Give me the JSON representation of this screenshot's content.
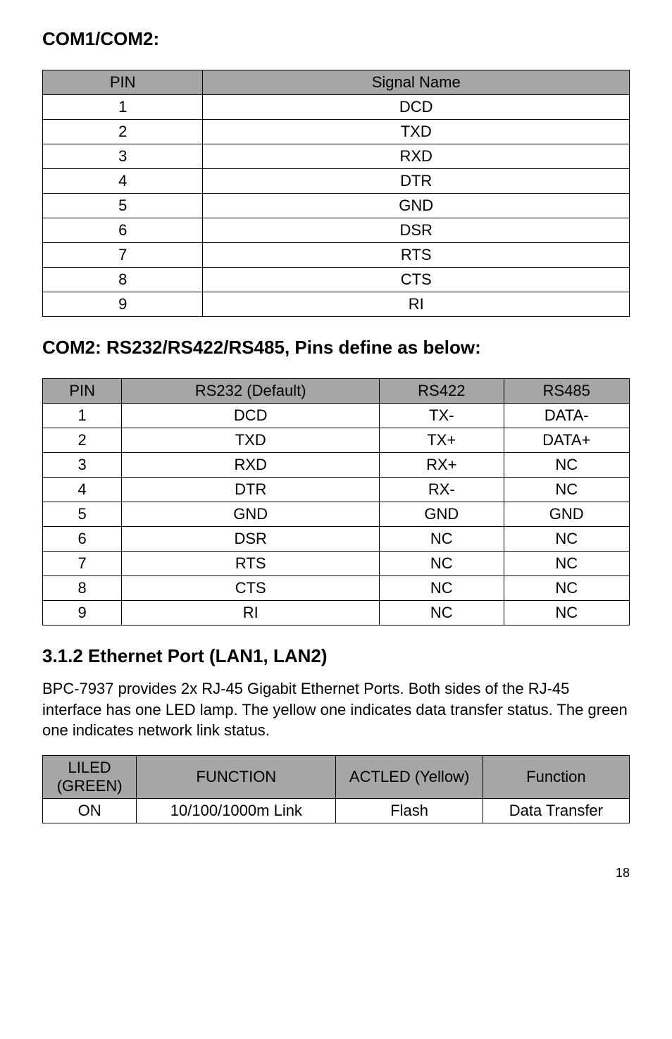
{
  "heading1": "COM1/COM2:",
  "table1": {
    "headers": [
      "PIN",
      "Signal Name"
    ],
    "rows": [
      [
        "1",
        "DCD"
      ],
      [
        "2",
        "TXD"
      ],
      [
        "3",
        "RXD"
      ],
      [
        "4",
        "DTR"
      ],
      [
        "5",
        "GND"
      ],
      [
        "6",
        "DSR"
      ],
      [
        "7",
        "RTS"
      ],
      [
        "8",
        "CTS"
      ],
      [
        "9",
        "RI"
      ]
    ]
  },
  "heading2": "COM2: RS232/RS422/RS485, Pins define as below:",
  "table2": {
    "headers": [
      "PIN",
      "RS232 (Default)",
      "RS422",
      "RS485"
    ],
    "rows": [
      [
        "1",
        "DCD",
        "TX-",
        "DATA-"
      ],
      [
        "2",
        "TXD",
        "TX+",
        "DATA+"
      ],
      [
        "3",
        "RXD",
        "RX+",
        "NC"
      ],
      [
        "4",
        "DTR",
        "RX-",
        "NC"
      ],
      [
        "5",
        "GND",
        "GND",
        "GND"
      ],
      [
        "6",
        "DSR",
        "NC",
        "NC"
      ],
      [
        "7",
        "RTS",
        "NC",
        "NC"
      ],
      [
        "8",
        "CTS",
        "NC",
        "NC"
      ],
      [
        "9",
        "RI",
        "NC",
        "NC"
      ]
    ]
  },
  "heading3": "3.1.2 Ethernet Port (LAN1, LAN2)",
  "paragraph": "BPC-7937 provides 2x RJ-45 Gigabit Ethernet Ports. Both sides of the RJ-45 interface has one LED lamp. The yellow one indicates data transfer status. The green one indicates network link status.",
  "table3": {
    "headers": [
      "LILED (GREEN)",
      "FUNCTION",
      "ACTLED (Yellow)",
      "Function"
    ],
    "rows": [
      [
        "ON",
        "10/100/1000m Link",
        "Flash",
        "Data Transfer"
      ]
    ]
  },
  "pageNumber": "18"
}
